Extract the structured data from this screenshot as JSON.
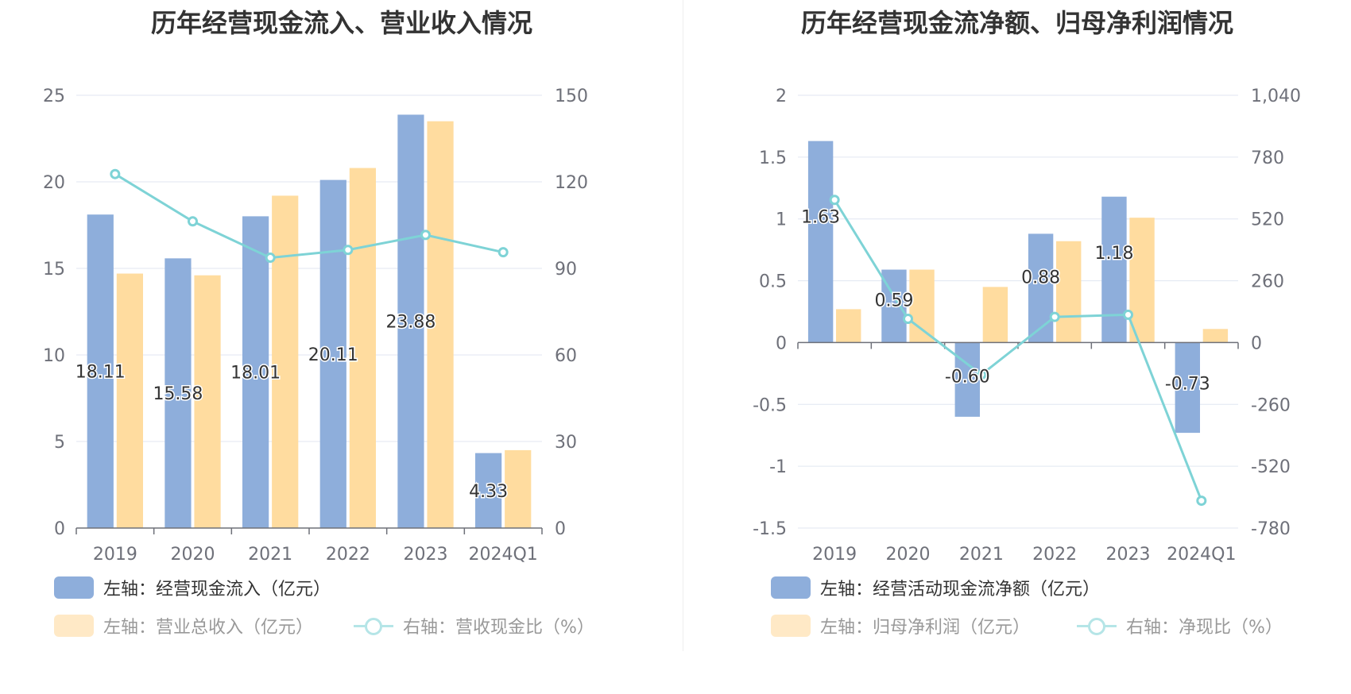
{
  "colors": {
    "blue": "#8eaedb",
    "orange": "#ffdc9f",
    "teal": "#7ed3d6",
    "grid": "#e0e6f1",
    "axis": "#6e7079"
  },
  "chart_data": [
    {
      "type": "bar",
      "title": "历年经营现金流入、营业收入情况",
      "categories": [
        "2019",
        "2020",
        "2021",
        "2022",
        "2023",
        "2024Q1"
      ],
      "left_axis": {
        "ylim": [
          0,
          25
        ],
        "ticks": [
          "0",
          "5",
          "10",
          "15",
          "20",
          "25"
        ]
      },
      "right_axis": {
        "ylim": [
          0,
          150
        ],
        "ticks": [
          "0",
          "30",
          "60",
          "90",
          "120",
          "150"
        ]
      },
      "series": [
        {
          "name": "左轴：经营现金流入（亿元）",
          "type": "bar",
          "axis": "left",
          "color": "blue",
          "values": [
            18.11,
            15.58,
            18.01,
            20.11,
            23.88,
            4.33
          ],
          "labels": [
            "18.11",
            "15.58",
            "18.01",
            "20.11",
            "23.88",
            "4.33"
          ]
        },
        {
          "name": "左轴：营业总收入（亿元）",
          "type": "bar",
          "axis": "left",
          "color": "orange",
          "values": [
            14.7,
            14.6,
            19.2,
            20.8,
            23.5,
            4.5
          ]
        },
        {
          "name": "右轴：营收现金比（%）",
          "type": "line",
          "axis": "right",
          "color": "teal",
          "values": [
            122.7,
            106.3,
            93.7,
            96.4,
            101.6,
            95.6
          ]
        }
      ],
      "legend": [
        {
          "label": "左轴：经营现金流入（亿元）",
          "kind": "bar",
          "color": "blue",
          "active": true
        },
        {
          "label": "左轴：营业总收入（亿元）",
          "kind": "bar",
          "color": "orange",
          "active": false
        },
        {
          "label": "右轴：营收现金比（%）",
          "kind": "line",
          "color": "teal",
          "active": false
        }
      ],
      "legend_placement": "bottom",
      "grid": true
    },
    {
      "type": "bar",
      "title": "历年经营现金流净额、归母净利润情况",
      "categories": [
        "2019",
        "2020",
        "2021",
        "2022",
        "2023",
        "2024Q1"
      ],
      "left_axis": {
        "ylim": [
          -1.5,
          2
        ],
        "ticks": [
          "-1.5",
          "-1",
          "-0.5",
          "0",
          "0.5",
          "1",
          "1.5",
          "2"
        ]
      },
      "right_axis": {
        "ylim": [
          -780,
          1040
        ],
        "ticks": [
          "-780",
          "-520",
          "-260",
          "0",
          "260",
          "520",
          "780",
          "1,040"
        ]
      },
      "series": [
        {
          "name": "左轴：经营活动现金流净额（亿元）",
          "type": "bar",
          "axis": "left",
          "color": "blue",
          "values": [
            1.63,
            0.59,
            -0.6,
            0.88,
            1.18,
            -0.73
          ],
          "labels": [
            "1.63",
            "0.59",
            "-0.60",
            "0.88",
            "1.18",
            "-0.73"
          ]
        },
        {
          "name": "左轴：归母净利润（亿元）",
          "type": "bar",
          "axis": "left",
          "color": "orange",
          "values": [
            0.27,
            0.59,
            0.45,
            0.82,
            1.01,
            0.11
          ]
        },
        {
          "name": "右轴：净现比（%）",
          "type": "line",
          "axis": "right",
          "color": "teal",
          "values": [
            600,
            100,
            -135,
            108,
            117,
            -665
          ]
        }
      ],
      "legend": [
        {
          "label": "左轴：经营活动现金流净额（亿元）",
          "kind": "bar",
          "color": "blue",
          "active": true
        },
        {
          "label": "左轴：归母净利润（亿元）",
          "kind": "bar",
          "color": "orange",
          "active": false
        },
        {
          "label": "右轴：净现比（%）",
          "kind": "line",
          "color": "teal",
          "active": false
        }
      ],
      "legend_placement": "bottom",
      "grid": true
    }
  ]
}
